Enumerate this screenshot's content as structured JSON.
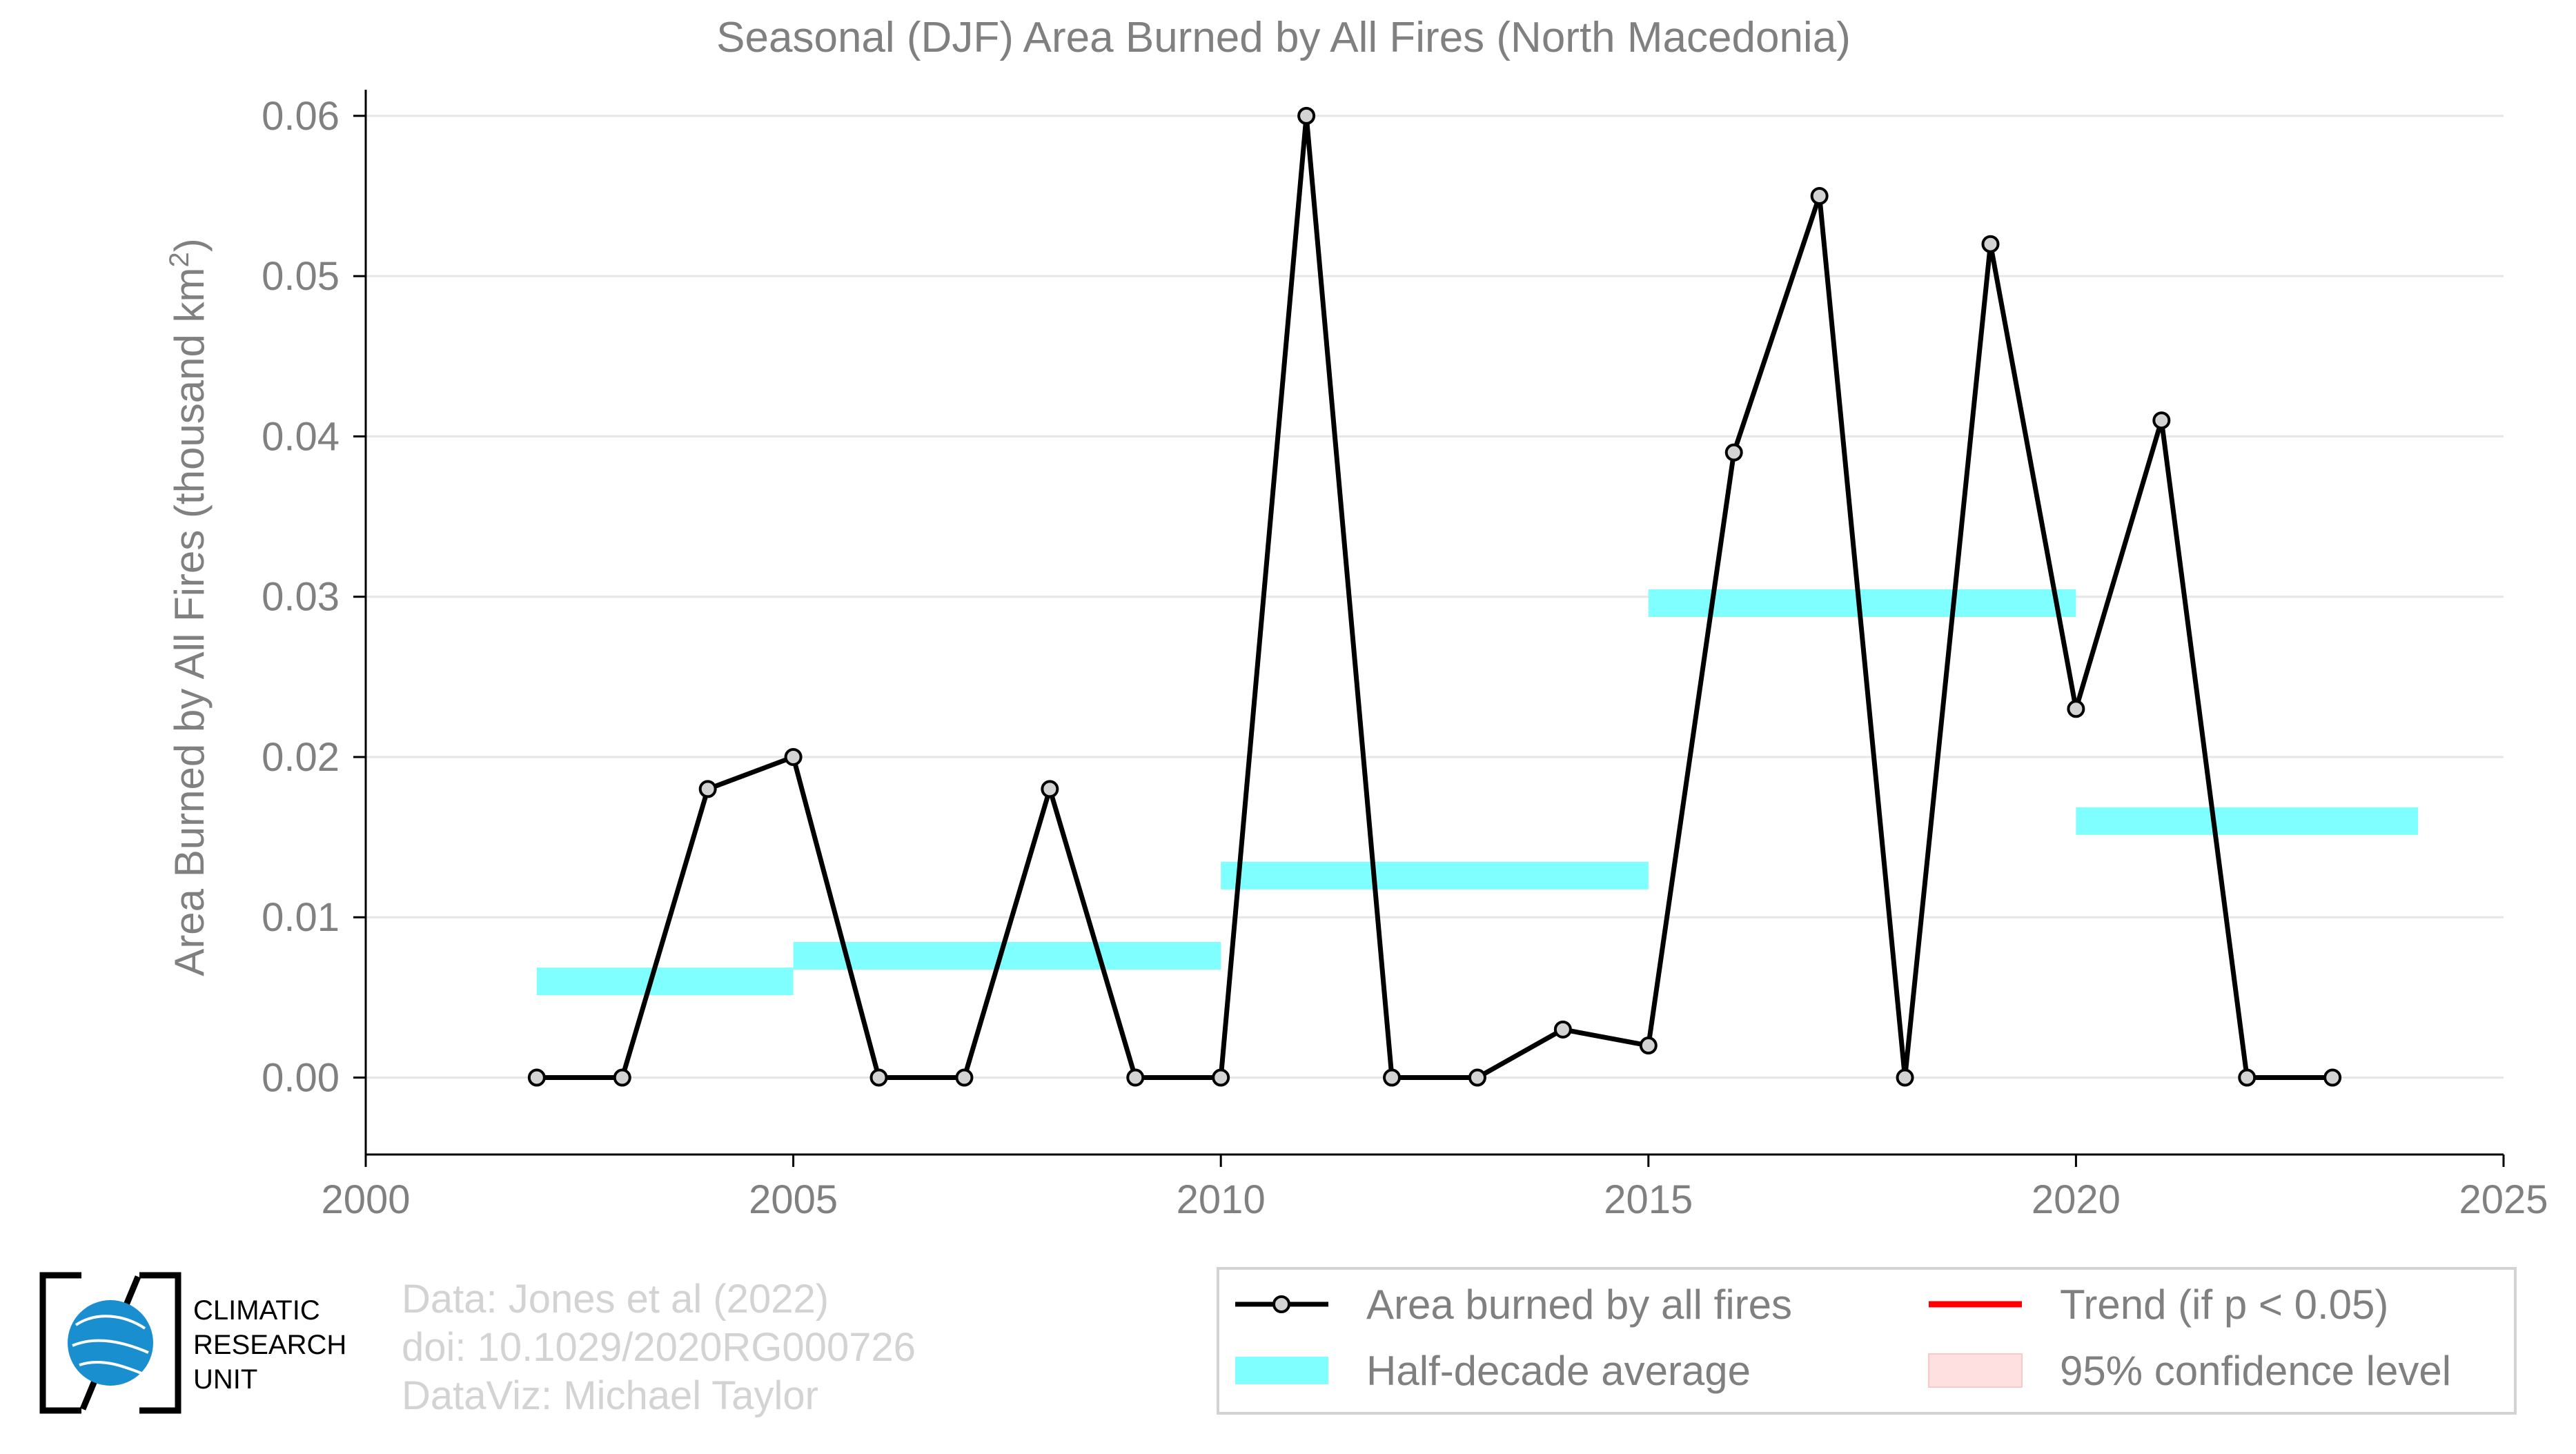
{
  "chart_data": {
    "type": "line",
    "title": "Seasonal (DJF) Area Burned by All Fires (North Macedonia)",
    "ylabel": "Area Burned by All Fires (thousand km",
    "ylabel_sup": "2",
    "ylabel_close": ")",
    "xlim": [
      2000,
      2025
    ],
    "ylim": [
      -0.0048,
      0.0612
    ],
    "x_ticks": [
      2000,
      2005,
      2010,
      2015,
      2020,
      2025
    ],
    "x_tick_labels": [
      "2000",
      "2005",
      "2010",
      "2015",
      "2020",
      "2025"
    ],
    "y_ticks": [
      0.0,
      0.01,
      0.02,
      0.03,
      0.04,
      0.05,
      0.06
    ],
    "y_tick_labels": [
      "0.00",
      "0.01",
      "0.02",
      "0.03",
      "0.04",
      "0.05",
      "0.06"
    ],
    "grid": "horizontal",
    "series": [
      {
        "name": "Area burned by all fires",
        "color": "#000000",
        "marker_fill": "#d3d3d3",
        "x": [
          2002,
          2003,
          2004,
          2005,
          2006,
          2007,
          2008,
          2009,
          2010,
          2011,
          2012,
          2013,
          2014,
          2015,
          2016,
          2017,
          2018,
          2019,
          2020,
          2021,
          2022,
          2023
        ],
        "y": [
          0.0,
          0.0,
          0.018,
          0.02,
          0.0,
          0.0,
          0.018,
          0.0,
          0.0,
          0.06,
          0.0,
          0.0,
          0.003,
          0.002,
          0.039,
          0.055,
          0.0,
          0.052,
          0.023,
          0.041,
          0.0,
          0.0
        ]
      }
    ],
    "half_decade_average": {
      "name": "Half-decade average",
      "color": "#7fffff",
      "segments": [
        {
          "x0": 2002,
          "x1": 2005,
          "y": 0.006
        },
        {
          "x0": 2005,
          "x1": 2010,
          "y": 0.0076
        },
        {
          "x0": 2010,
          "x1": 2015,
          "y": 0.0126
        },
        {
          "x0": 2015,
          "x1": 2020,
          "y": 0.0296
        },
        {
          "x0": 2020,
          "x1": 2024,
          "y": 0.016
        }
      ]
    },
    "legend": {
      "placement": "bottom-right",
      "items": [
        {
          "label": "Area burned by all fires",
          "kind": "line-marker",
          "color": "#000000"
        },
        {
          "label": "Trend (if p < 0.05)",
          "kind": "line",
          "color": "#ff0000"
        },
        {
          "label": "Half-decade average",
          "kind": "band",
          "color": "#7fffff"
        },
        {
          "label": "95% confidence level",
          "kind": "patch",
          "color": "#ffe0e0"
        }
      ]
    }
  },
  "credits": {
    "line1": "Data: Jones et al (2022)",
    "line2": "doi: 10.1029/2020RG000726",
    "line3": "DataViz: Michael Taylor"
  },
  "logo": {
    "line1": "CLIMATIC",
    "line2": "RESEARCH",
    "line3": "UNIT",
    "globe_color": "#1a8fd0"
  }
}
